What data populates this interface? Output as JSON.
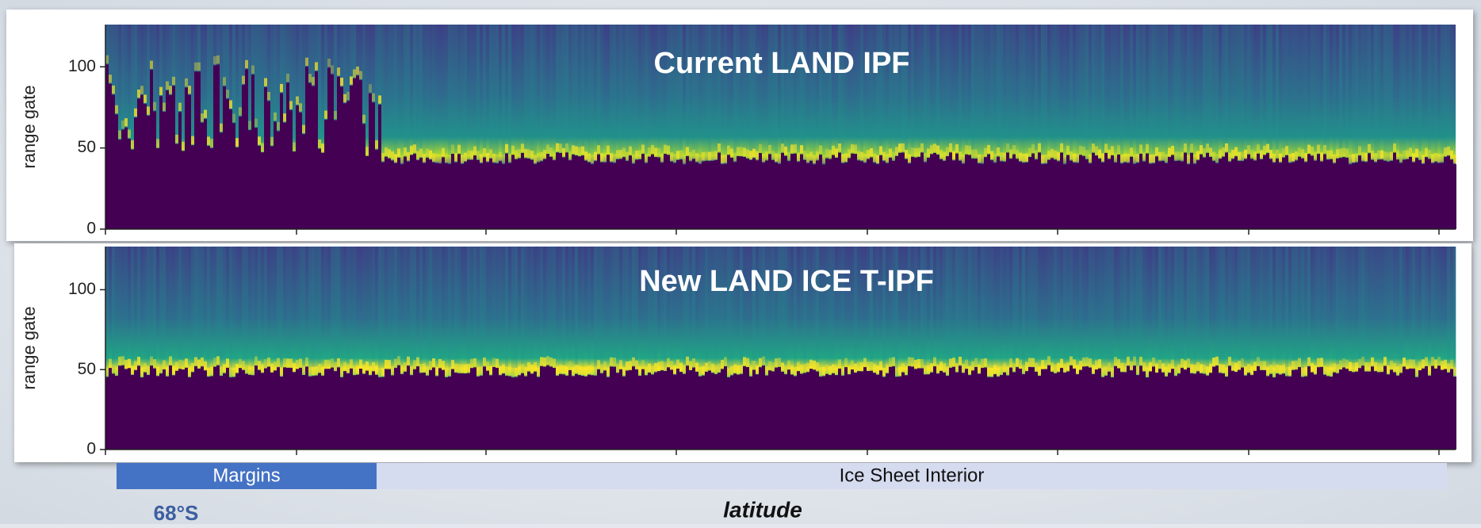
{
  "chart_data": [
    {
      "type": "heatmap",
      "title": "Current LAND IPF",
      "ylabel": "range gate",
      "ylim": [
        0,
        126
      ],
      "yticks": [
        0,
        50,
        100
      ]
    },
    {
      "type": "heatmap",
      "title": "New LAND ICE T-IPF",
      "ylabel": "range gate",
      "ylim": [
        0,
        127
      ],
      "yticks": [
        0,
        50,
        100
      ]
    }
  ],
  "x_axis": {
    "bands": [
      {
        "label": "Margins",
        "color": "#4472c4"
      },
      {
        "label": "Ice Sheet Interior",
        "color": "#d6dcef"
      }
    ],
    "start_label": "68°S",
    "xlabel": "latitude"
  }
}
